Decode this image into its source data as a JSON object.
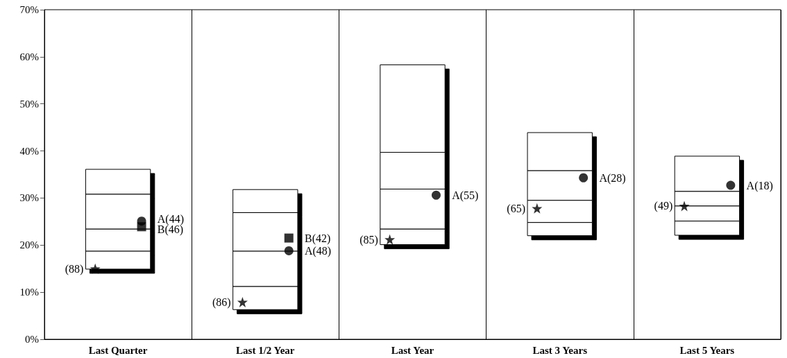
{
  "chart_data": {
    "type": "bar",
    "stacked": true,
    "categories": [
      "Last Quarter",
      "Last 1/2 Year",
      "Last Year",
      "Last 3 Years",
      "Last 5 Years"
    ],
    "series": [
      {
        "color": "#ffffff",
        "base": [
          14.9,
          6.3,
          20.1,
          22.0,
          22.1
        ],
        "values": [
          3.8,
          4.9,
          3.3,
          2.8,
          3.0
        ]
      },
      {
        "color": "#ffffff",
        "values": [
          4.7,
          7.5,
          8.5,
          4.7,
          3.2
        ]
      },
      {
        "color": "#ffffff",
        "values": [
          7.4,
          8.2,
          7.8,
          6.3,
          3.1
        ]
      },
      {
        "color": "#ffffff",
        "values": [
          5.3,
          4.9,
          18.6,
          8.1,
          7.5
        ]
      },
      {
        "type": "scatter",
        "marker": "star",
        "color": "#000000",
        "x": [
          "Last Quarter",
          "Last 1/2 Year",
          "Last Year",
          "Last 3 Years",
          "Last 5 Years"
        ],
        "values": [
          15.0,
          7.9,
          21.2,
          27.8,
          28.3
        ]
      },
      {
        "type": "scatter",
        "marker": "circle",
        "color": "#000000",
        "x": [
          "Last Quarter",
          "Last 1/2 Year",
          "Last Year",
          "Last 3 Years",
          "Last 5 Years"
        ],
        "values": [
          25.1,
          18.8,
          30.6,
          34.3,
          32.7
        ]
      },
      {
        "type": "scatter",
        "marker": "square",
        "color": "#000000",
        "x": [
          "Last Quarter",
          "Last 1/2 Year"
        ],
        "values": [
          23.9,
          21.5
        ]
      }
    ],
    "annotations": [
      "(88)",
      "(86)",
      "(85)",
      "(65)",
      "(49)",
      "A(44)",
      "A(48)",
      "A(55)",
      "A(28)",
      "A(18)",
      "B(46)",
      "B(42)"
    ],
    "ylim": [
      0,
      70
    ],
    "yticks": [
      {
        "value": 0,
        "label": "0%"
      },
      {
        "value": 10,
        "label": "10%"
      },
      {
        "value": 20,
        "label": "20%"
      },
      {
        "value": 30,
        "label": "30%"
      },
      {
        "value": 40,
        "label": "40%"
      },
      {
        "value": 50,
        "label": "50%"
      },
      {
        "value": 60,
        "label": "60%"
      },
      {
        "value": 70,
        "label": "70%"
      }
    ],
    "grid": "x"
  }
}
